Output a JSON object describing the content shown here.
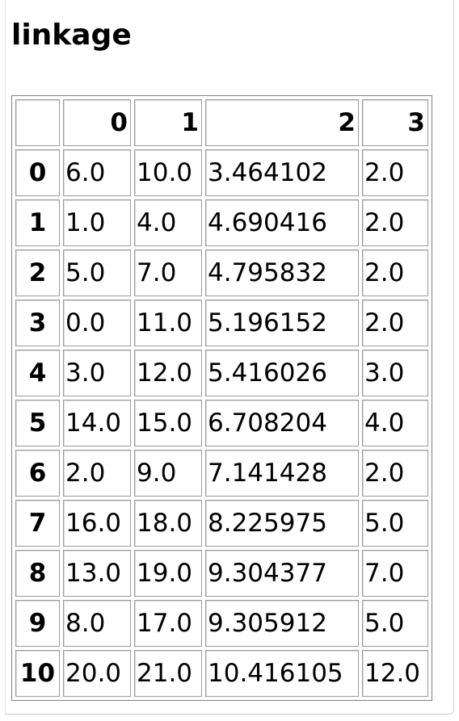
{
  "title": "linkage",
  "table": {
    "columns": [
      "",
      "0",
      "1",
      "2",
      "3"
    ],
    "rows": [
      {
        "index": "0",
        "cells": [
          "6.0",
          "10.0",
          "3.464102",
          "2.0"
        ]
      },
      {
        "index": "1",
        "cells": [
          "1.0",
          "4.0",
          "4.690416",
          "2.0"
        ]
      },
      {
        "index": "2",
        "cells": [
          "5.0",
          "7.0",
          "4.795832",
          "2.0"
        ]
      },
      {
        "index": "3",
        "cells": [
          "0.0",
          "11.0",
          "5.196152",
          "2.0"
        ]
      },
      {
        "index": "4",
        "cells": [
          "3.0",
          "12.0",
          "5.416026",
          "3.0"
        ]
      },
      {
        "index": "5",
        "cells": [
          "14.0",
          "15.0",
          "6.708204",
          "4.0"
        ]
      },
      {
        "index": "6",
        "cells": [
          "2.0",
          "9.0",
          "7.141428",
          "2.0"
        ]
      },
      {
        "index": "7",
        "cells": [
          "16.0",
          "18.0",
          "8.225975",
          "5.0"
        ]
      },
      {
        "index": "8",
        "cells": [
          "13.0",
          "19.0",
          "9.304377",
          "7.0"
        ]
      },
      {
        "index": "9",
        "cells": [
          "8.0",
          "17.0",
          "9.305912",
          "5.0"
        ]
      },
      {
        "index": "10",
        "cells": [
          "20.0",
          "21.0",
          "10.416105",
          "12.0"
        ]
      }
    ]
  }
}
